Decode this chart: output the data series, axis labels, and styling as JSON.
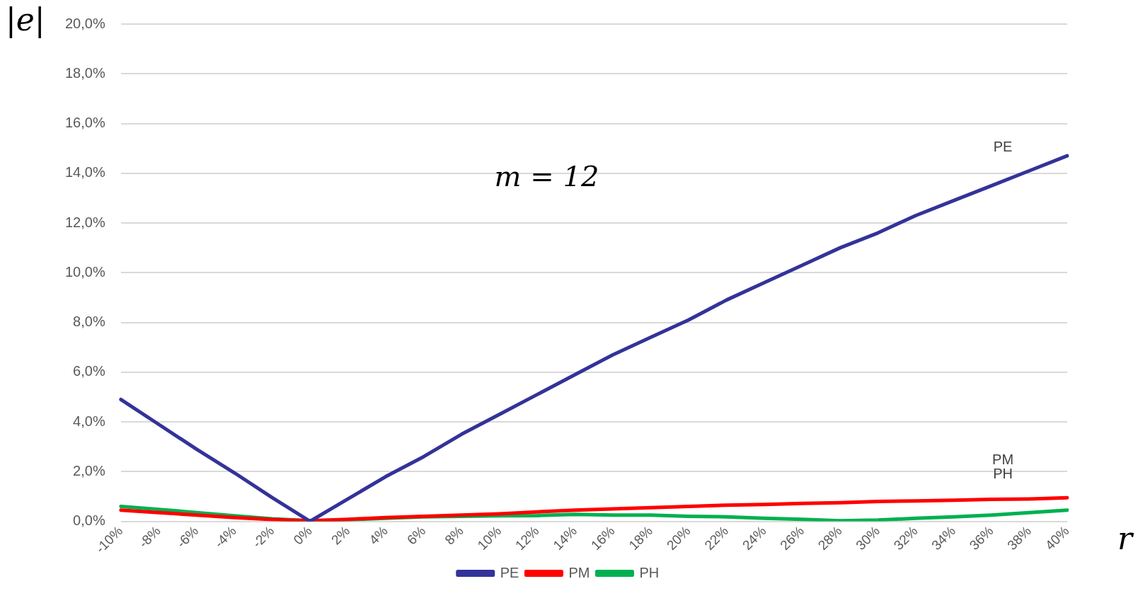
{
  "chart_data": {
    "type": "line",
    "ylabel": "|e|",
    "xlabel": "r",
    "categories": [
      "-10%",
      "-8%",
      "-6%",
      "-4%",
      "-2%",
      "0%",
      "2%",
      "4%",
      "6%",
      "8%",
      "10%",
      "12%",
      "14%",
      "16%",
      "18%",
      "20%",
      "22%",
      "24%",
      "26%",
      "28%",
      "30%",
      "32%",
      "34%",
      "36%",
      "38%",
      "40%"
    ],
    "series": [
      {
        "name": "PE",
        "color": "#333399",
        "values": [
          4.9,
          3.9,
          2.9,
          1.95,
          0.95,
          0,
          0.9,
          1.8,
          2.6,
          3.5,
          4.3,
          5.1,
          5.9,
          6.7,
          7.4,
          8.1,
          8.9,
          9.6,
          10.3,
          11.0,
          11.6,
          12.3,
          12.9,
          13.5,
          14.1,
          14.7
        ]
      },
      {
        "name": "PM",
        "color": "#ff0000",
        "values": [
          0.45,
          0.35,
          0.25,
          0.15,
          0.07,
          0.02,
          0.08,
          0.15,
          0.2,
          0.25,
          0.3,
          0.38,
          0.45,
          0.5,
          0.55,
          0.6,
          0.65,
          0.68,
          0.72,
          0.75,
          0.8,
          0.82,
          0.85,
          0.88,
          0.9,
          0.95
        ]
      },
      {
        "name": "PH",
        "color": "#00b050",
        "values": [
          0.6,
          0.48,
          0.35,
          0.22,
          0.1,
          0.02,
          0.06,
          0.12,
          0.18,
          0.2,
          0.22,
          0.23,
          0.28,
          0.25,
          0.25,
          0.2,
          0.18,
          0.12,
          0.08,
          0.02,
          0.05,
          0.12,
          0.18,
          0.25,
          0.35,
          0.45
        ]
      }
    ],
    "ylim": [
      0,
      20
    ],
    "yticks": [
      {
        "value": 0,
        "label": "0,0%"
      },
      {
        "value": 2,
        "label": "2,0%"
      },
      {
        "value": 4,
        "label": "4,0%"
      },
      {
        "value": 6,
        "label": "6,0%"
      },
      {
        "value": 8,
        "label": "8,0%"
      },
      {
        "value": 10,
        "label": "10,0%"
      },
      {
        "value": 12,
        "label": "12,0%"
      },
      {
        "value": 14,
        "label": "14,0%"
      },
      {
        "value": 16,
        "label": "16,0%"
      },
      {
        "value": 18,
        "label": "18,0%"
      },
      {
        "value": 20,
        "label": "20,0%"
      }
    ],
    "annotations": [
      "m = 12",
      "PE",
      "PM",
      "PH"
    ],
    "grid": "y",
    "legend": "bottom",
    "marker": "none",
    "line_style": "solid"
  }
}
